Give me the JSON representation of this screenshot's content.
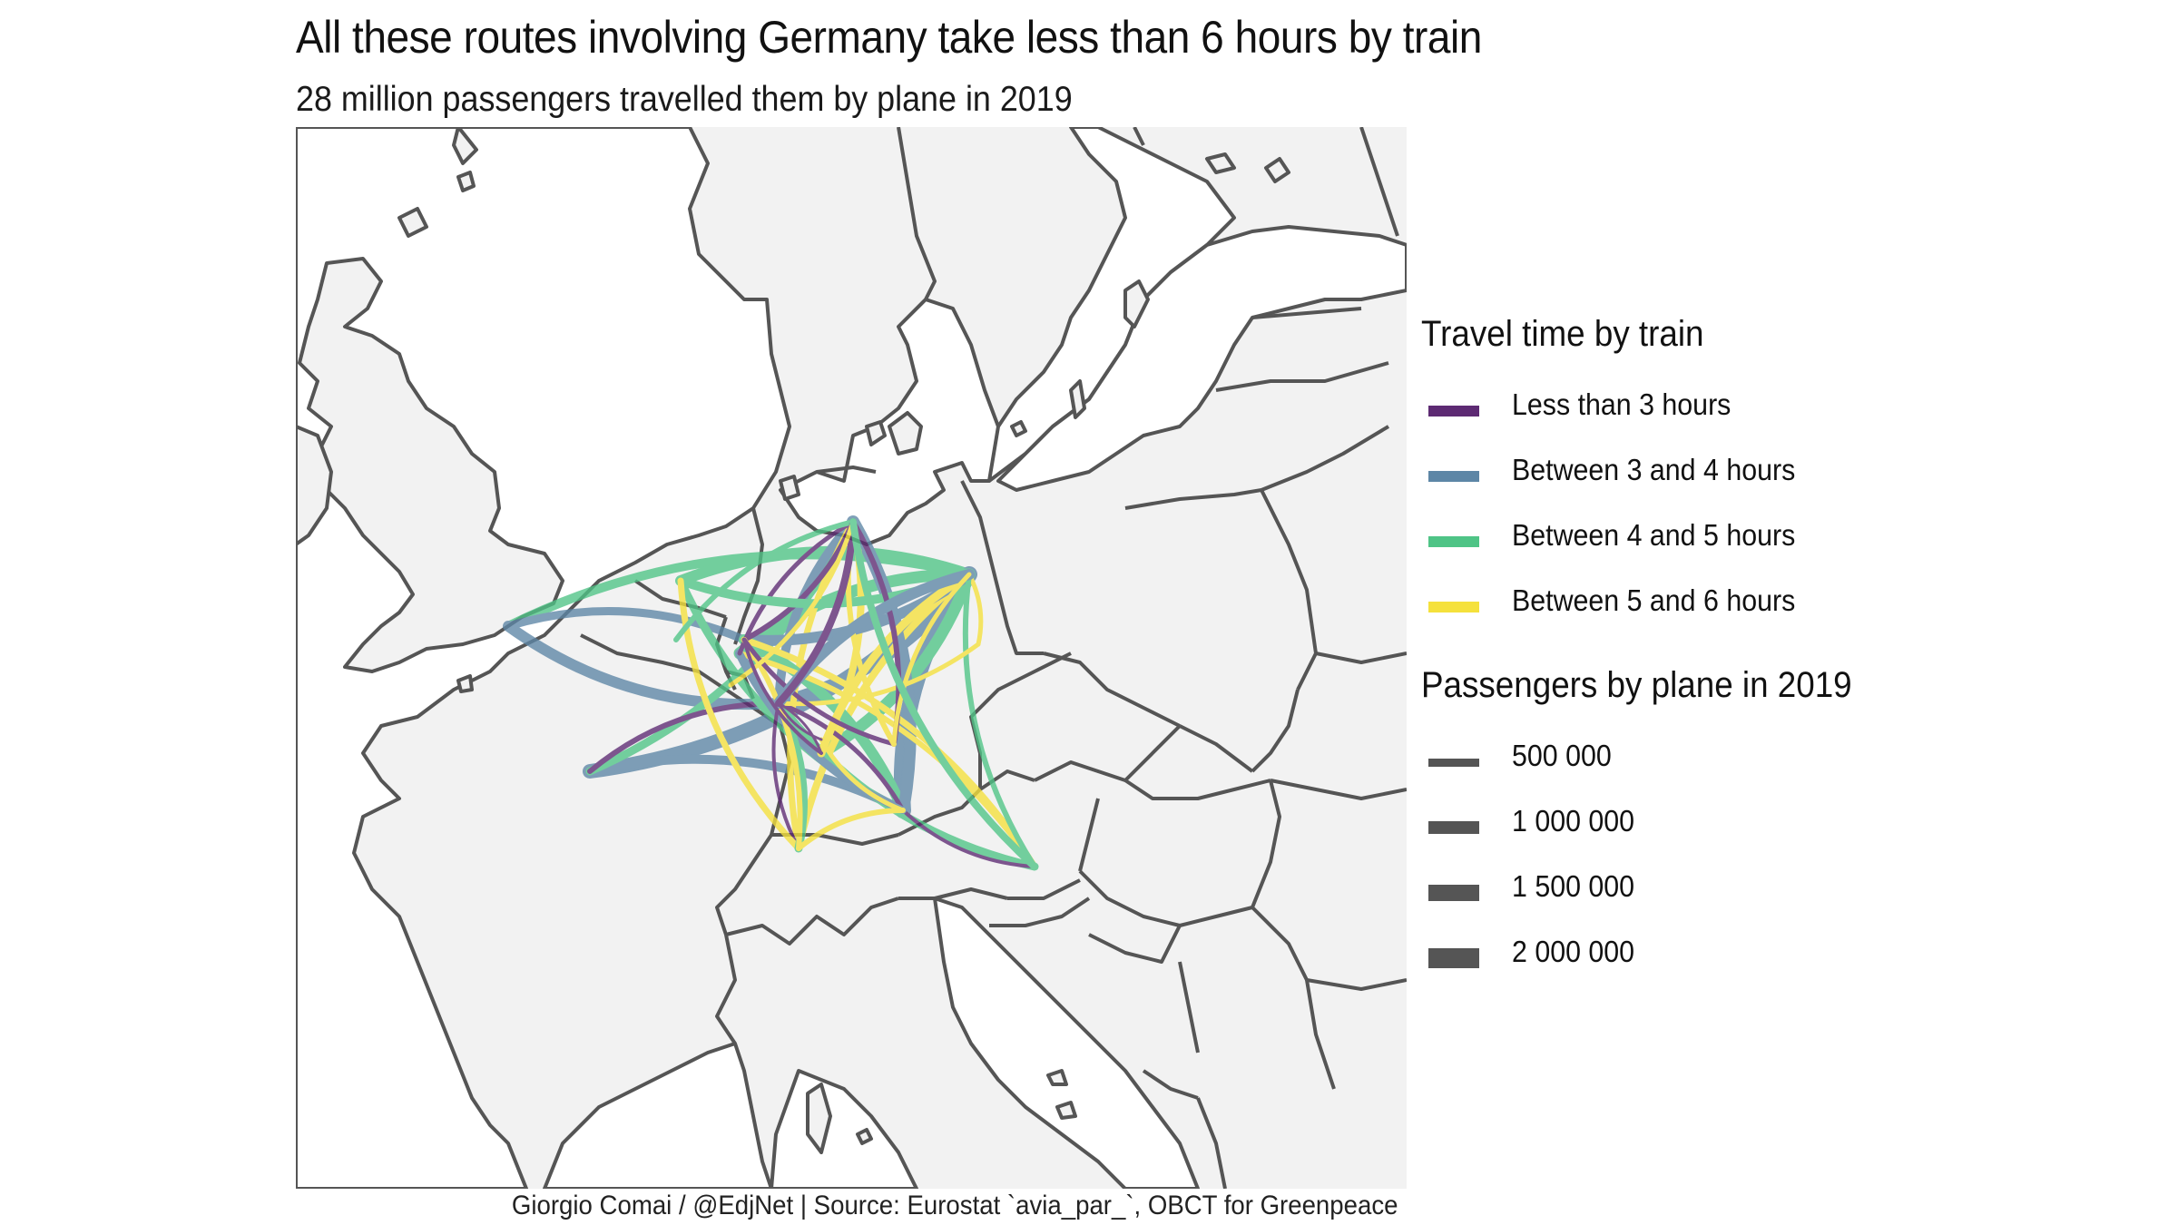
{
  "title": "All these routes involving Germany take less than 6 hours by train",
  "subtitle": "28 million passengers travelled them by plane in 2019",
  "caption": "Giorgio Comai / @EdjNet | Source: Eurostat `avia_par_`, OBCT for Greenpeace",
  "legend_time": {
    "title": "Travel time by train",
    "items": [
      {
        "label": "Less than 3 hours",
        "color": "#5d2a73"
      },
      {
        "label": "Between 3 and 4 hours",
        "color": "#5d86a6"
      },
      {
        "label": "Between 4 and 5 hours",
        "color": "#4fc486"
      },
      {
        "label": "Between 5 and 6 hours",
        "color": "#f5e13c"
      }
    ]
  },
  "legend_passengers": {
    "title": "Passengers by plane in 2019",
    "items": [
      {
        "label": "500 000",
        "value": 500000
      },
      {
        "label": "1 000 000",
        "value": 1000000
      },
      {
        "label": "1 500 000",
        "value": 1500000
      },
      {
        "label": "2 000 000",
        "value": 2000000
      }
    ]
  },
  "map": {
    "land_color": "#f2f2f2",
    "border_color": "#555555",
    "sea_color": "#ffffff"
  }
}
